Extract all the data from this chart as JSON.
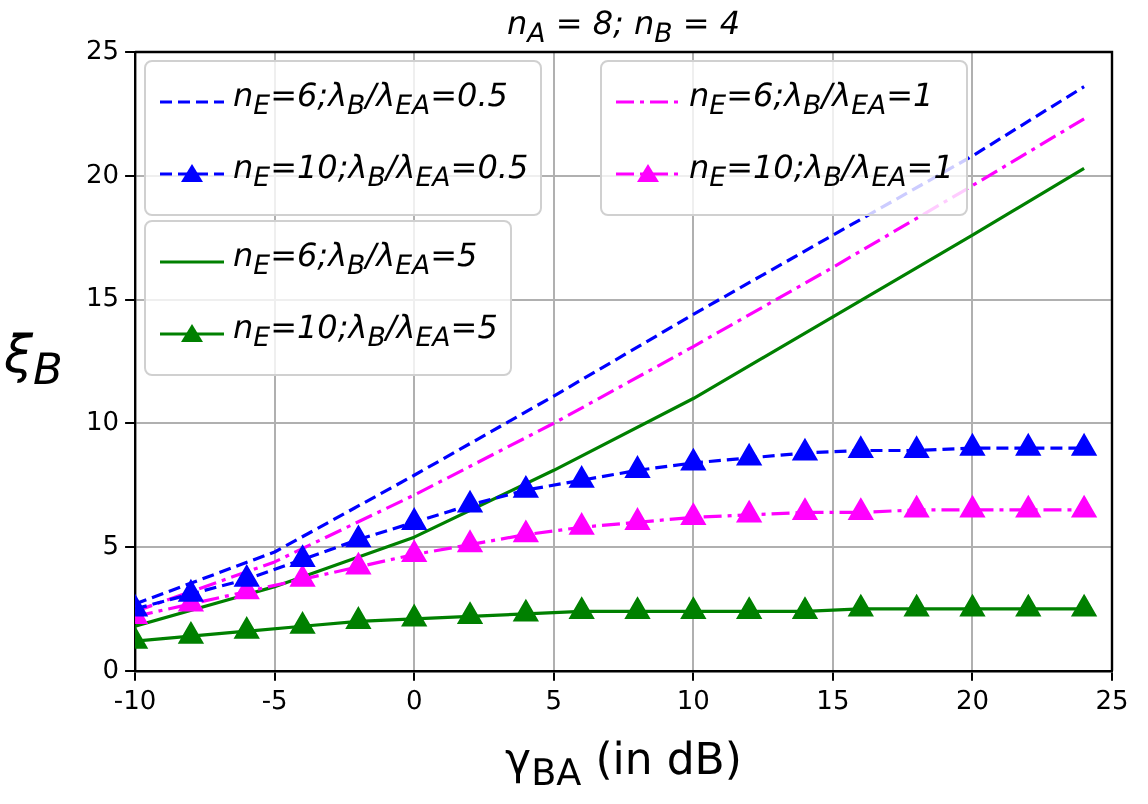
{
  "chart_data": {
    "type": "line",
    "title": "n$_{A}$ = 8; n$_{B}$ = 4",
    "xlabel": "γ$_{BA}$ (in dB)",
    "ylabel": "ξ$_{B}$",
    "xlim": [
      -10,
      25
    ],
    "xticks": [
      -10,
      -5,
      0,
      5,
      10,
      15,
      20,
      25
    ],
    "ylim": [
      0,
      25
    ],
    "yticks": [
      0,
      5,
      10,
      15,
      20,
      25
    ],
    "grid": true,
    "legend": "top left",
    "series": [
      {
        "name": "n$_{E}$=6;λ$_{B}$/λ$_{EA}$=0.5",
        "color": "#0000ff",
        "line_style": "dashed",
        "marker": "none",
        "x": [
          -10,
          -5,
          0,
          5,
          10,
          15,
          20,
          24
        ],
        "values": [
          2.7,
          4.8,
          7.9,
          11.1,
          14.4,
          17.6,
          20.8,
          23.6
        ]
      },
      {
        "name": "n$_{E}$=10;λ$_{B}$/λ$_{EA}$=0.5",
        "color": "#0000ff",
        "line_style": "dashed",
        "marker": "triangle",
        "x": [
          -10,
          -8,
          -6,
          -4,
          -2,
          0,
          2,
          4,
          6,
          8,
          10,
          12,
          14,
          16,
          18,
          20,
          22,
          24
        ],
        "values": [
          2.5,
          3.1,
          3.7,
          4.5,
          5.3,
          6.0,
          6.7,
          7.3,
          7.7,
          8.1,
          8.4,
          8.6,
          8.8,
          8.9,
          8.9,
          9.0,
          9.0,
          9.0
        ]
      },
      {
        "name": "n$_{E}$=6;λ$_{B}$/λ$_{EA}$=1",
        "color": "#ff00ff",
        "line_style": "dashdot",
        "marker": "none",
        "x": [
          -10,
          -5,
          0,
          5,
          10,
          15,
          20,
          24
        ],
        "values": [
          2.4,
          4.4,
          7.1,
          10.0,
          13.1,
          16.3,
          19.6,
          22.3
        ]
      },
      {
        "name": "n$_{E}$=10;λ$_{B}$/λ$_{EA}$=1",
        "color": "#ff00ff",
        "line_style": "dashdot",
        "marker": "triangle",
        "x": [
          -10,
          -8,
          -6,
          -4,
          -2,
          0,
          2,
          4,
          6,
          8,
          10,
          12,
          14,
          16,
          18,
          20,
          22,
          24
        ],
        "values": [
          2.2,
          2.7,
          3.2,
          3.7,
          4.2,
          4.7,
          5.1,
          5.5,
          5.8,
          6.0,
          6.2,
          6.3,
          6.4,
          6.4,
          6.5,
          6.5,
          6.5,
          6.5
        ]
      },
      {
        "name": "n$_{E}$=6;λ$_{B}$/λ$_{EA}$=5",
        "color": "#008000",
        "line_style": "solid",
        "marker": "none",
        "x": [
          -10,
          -5,
          0,
          5,
          10,
          15,
          20,
          24
        ],
        "values": [
          1.8,
          3.4,
          5.4,
          8.1,
          11.0,
          14.3,
          17.6,
          20.3
        ]
      },
      {
        "name": "n$_{E}$=10;λ$_{B}$/λ$_{EA}$=5",
        "color": "#008000",
        "line_style": "solid",
        "marker": "triangle",
        "x": [
          -10,
          -8,
          -6,
          -4,
          -2,
          0,
          2,
          4,
          6,
          8,
          10,
          12,
          14,
          16,
          18,
          20,
          22,
          24
        ],
        "values": [
          1.2,
          1.4,
          1.6,
          1.8,
          2.0,
          2.1,
          2.2,
          2.3,
          2.4,
          2.4,
          2.4,
          2.4,
          2.4,
          2.5,
          2.5,
          2.5,
          2.5,
          2.5
        ]
      }
    ]
  }
}
